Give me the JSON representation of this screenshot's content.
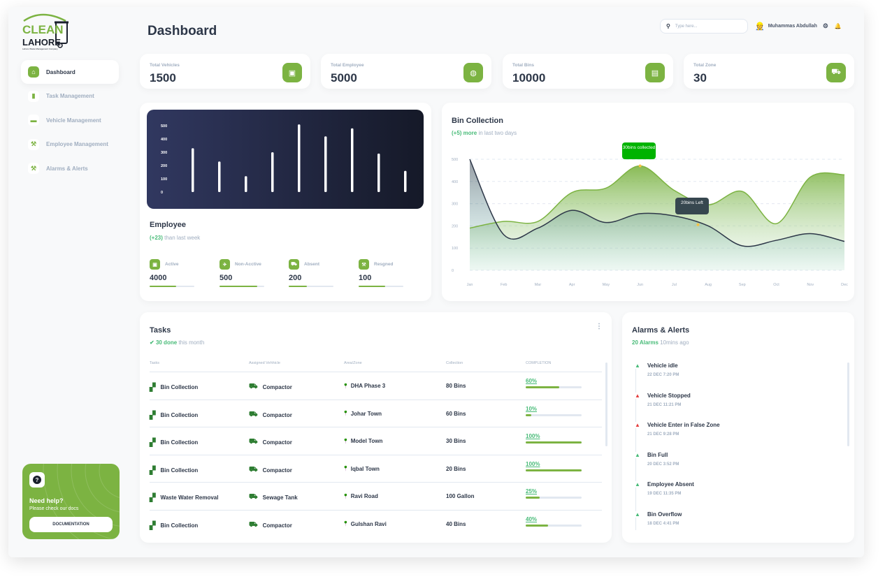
{
  "brand": {
    "logo_top": "CLEAN",
    "logo_bottom": "LAHORE",
    "logo_sub": "Lahore Waste Management Company"
  },
  "sidebar": {
    "items": [
      {
        "label": "Dashboard",
        "icon": "home-icon"
      },
      {
        "label": "Task Management",
        "icon": "bar-chart-icon"
      },
      {
        "label": "Vehicle Management",
        "icon": "card-icon"
      },
      {
        "label": "Employee Management",
        "icon": "wrench-icon"
      },
      {
        "label": "Alarms & Alerts",
        "icon": "wrench-icon"
      }
    ]
  },
  "help": {
    "title": "Need help?",
    "subtitle": "Please check our docs",
    "button": "DOCUMENTATION"
  },
  "header": {
    "title": "Dashboard",
    "search_placeholder": "Type here...",
    "user_name": "Muhammas Abdullah"
  },
  "stats": [
    {
      "label": "Total Vehicles",
      "value": "1500",
      "icon": "wallet-icon"
    },
    {
      "label": "Total Employee",
      "value": "5000",
      "icon": "globe-icon"
    },
    {
      "label": "Total Bins",
      "value": "10000",
      "icon": "document-icon"
    },
    {
      "label": "Total Zone",
      "value": "30",
      "icon": "cart-icon"
    }
  ],
  "employee": {
    "title": "Employee",
    "sub_highlight": "(+23)",
    "sub_rest": " than last week",
    "stats": [
      {
        "label": "Active",
        "value": "4000",
        "progress": 0.6,
        "icon": "wallet-icon"
      },
      {
        "label": "Non-Acctive",
        "value": "500",
        "progress": 0.85,
        "icon": "rocket-icon"
      },
      {
        "label": "Absent",
        "value": "200",
        "progress": 0.4,
        "icon": "cart-icon"
      },
      {
        "label": "Resgned",
        "value": "100",
        "progress": 0.6,
        "icon": "wrench-icon"
      }
    ]
  },
  "binCollection": {
    "title": "Bin Collection",
    "sub_highlight": "(+5) more",
    "sub_rest": " in last two days",
    "tooltip1": "30bins collected",
    "tooltip2": "20bins Left"
  },
  "tasks": {
    "title": "Tasks",
    "done_highlight": "30 done",
    "done_rest": " this month",
    "headers": [
      "Tasks",
      "Assigned Vehhicle",
      "Area/Zone",
      "Collection",
      "COMPLETION"
    ],
    "rows": [
      {
        "task": "Bin Collection",
        "vehicle": "Compactor",
        "area": "DHA Phase 3",
        "collection": "80 Bins",
        "completion": "60%",
        "progress": 0.6
      },
      {
        "task": "Bin Collection",
        "vehicle": "Compactor",
        "area": "Johar Town",
        "collection": "60 Bins",
        "completion": "10%",
        "progress": 0.1
      },
      {
        "task": "Bin Collection",
        "vehicle": "Compactor",
        "area": "Model Town",
        "collection": "30 Bins",
        "completion": "100%",
        "progress": 1.0
      },
      {
        "task": "Bin Collection",
        "vehicle": "Compactor",
        "area": "Iqbal Town",
        "collection": "20 Bins",
        "completion": "100%",
        "progress": 1.0
      },
      {
        "task": "Waste Water Removal",
        "vehicle": "Sewage Tank",
        "area": "Ravi Road",
        "collection": "100 Gallon",
        "completion": "25%",
        "progress": 0.25
      },
      {
        "task": "Bin Collection",
        "vehicle": "Compactor",
        "area": "Gulshan Ravi",
        "collection": "40 Bins",
        "completion": "40%",
        "progress": 0.4
      }
    ]
  },
  "alerts": {
    "title": "Alarms & Alerts",
    "sub_highlight": "20 Alarms",
    "sub_rest": " 10mins ago",
    "items": [
      {
        "title": "Vehicle idle",
        "date": "22 DEC 7:20 PM",
        "color": "#48bb78"
      },
      {
        "title": "Vehicle Stopped",
        "date": "21 DEC 11:21 PM",
        "color": "#e53e3e"
      },
      {
        "title": "Vehicle Enter in False Zone",
        "date": "21 DEC 9:28 PM",
        "color": "#e53e3e"
      },
      {
        "title": "Bin Full",
        "date": "20 DEC 3:52 PM",
        "color": "#48bb78"
      },
      {
        "title": "Employee Absent",
        "date": "19 DEC 11:35 PM",
        "color": "#48bb78"
      },
      {
        "title": "Bin Overflow",
        "date": "18 DEC 4:41 PM",
        "color": "#48bb78"
      }
    ]
  },
  "colors": {
    "accent": "#7cb342",
    "success": "#48bb78",
    "danger": "#e53e3e"
  },
  "chart_data": [
    {
      "type": "bar",
      "title": "",
      "y_ticks": [
        "0",
        "100",
        "200",
        "300",
        "400",
        "500"
      ],
      "ylim": [
        0,
        500
      ],
      "values": [
        330,
        230,
        120,
        300,
        510,
        420,
        480,
        290,
        160
      ]
    },
    {
      "type": "area",
      "title": "Bin Collection",
      "categories": [
        "Jan",
        "Feb",
        "Mar",
        "Apr",
        "May",
        "Jun",
        "Jul",
        "Aug",
        "Sep",
        "Oct",
        "Nov",
        "Dec"
      ],
      "y_ticks": [
        "0",
        "100",
        "200",
        "300",
        "400",
        "500"
      ],
      "ylim": [
        0,
        500
      ],
      "series": [
        {
          "values": [
            190,
            220,
            220,
            350,
            370,
            470,
            360,
            295,
            355,
            210,
            420,
            430
          ],
          "color": "#7cb342"
        },
        {
          "values": [
            500,
            160,
            190,
            270,
            215,
            255,
            245,
            200,
            110,
            135,
            165,
            130
          ],
          "color": "#2d3748"
        }
      ]
    }
  ]
}
